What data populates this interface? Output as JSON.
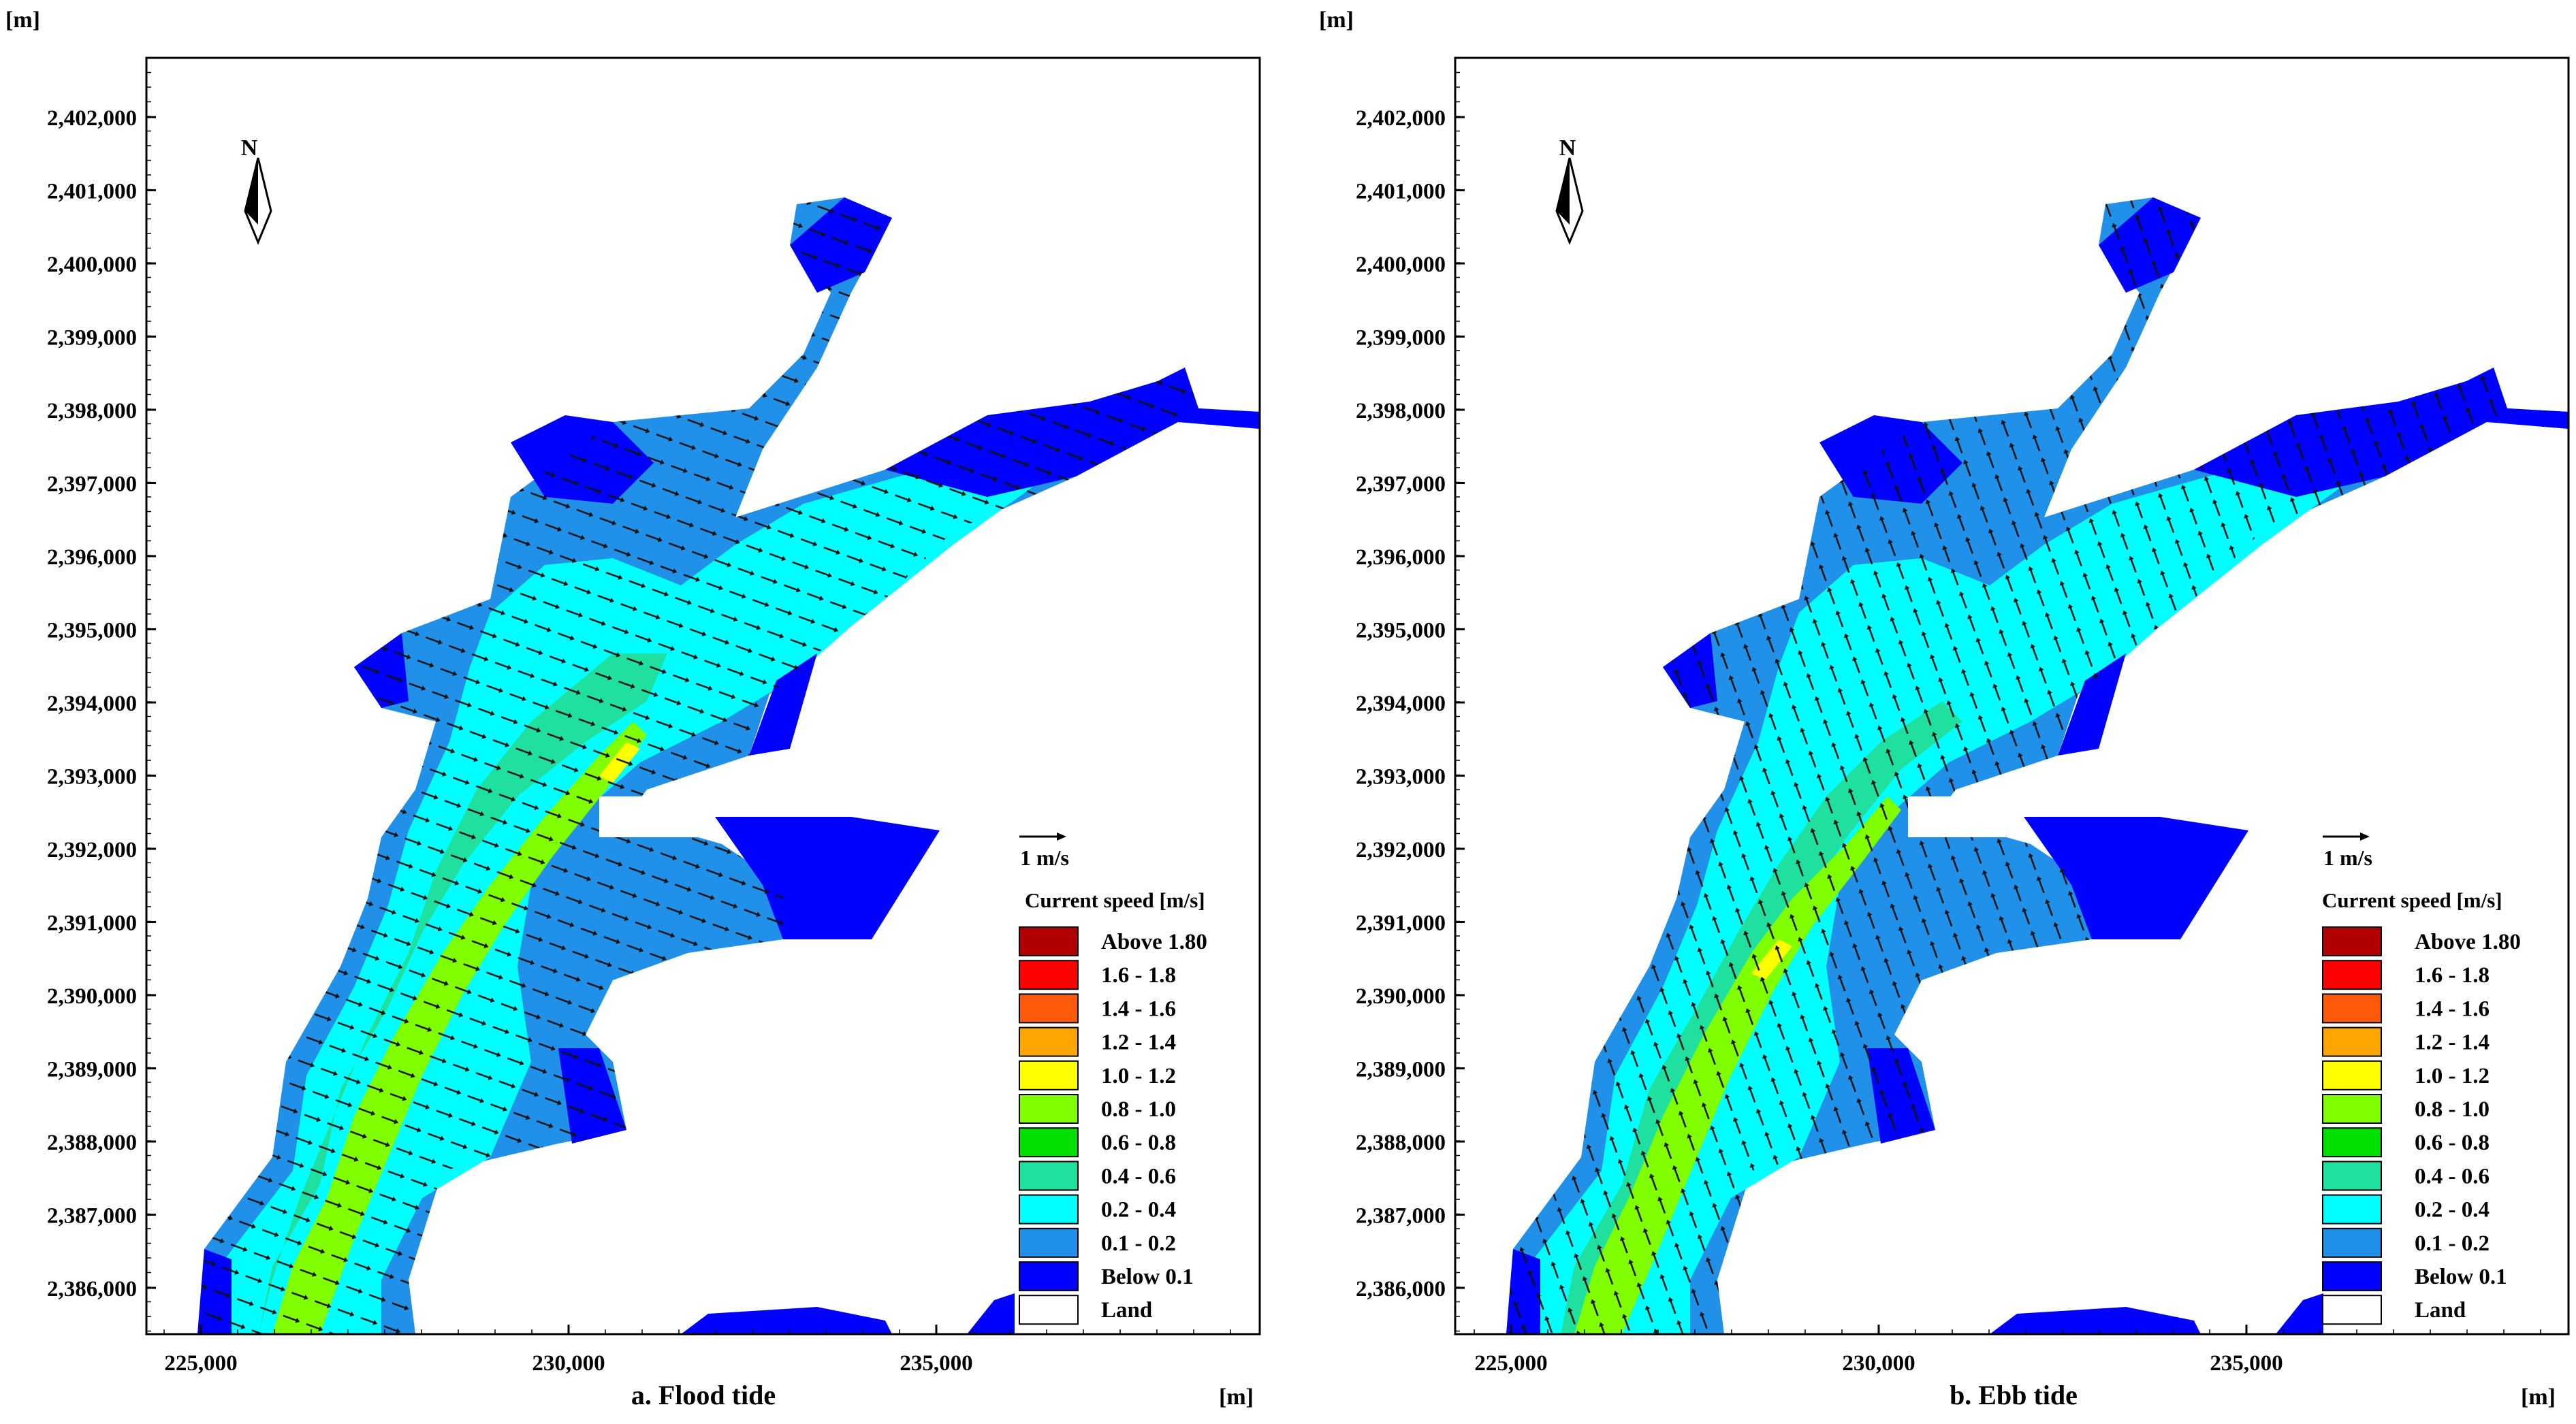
{
  "unit_label": "[m]",
  "y_ticks": [
    "2,402,000",
    "2,401,000",
    "2,400,000",
    "2,399,000",
    "2,398,000",
    "2,397,000",
    "2,396,000",
    "2,395,000",
    "2,394,000",
    "2,393,000",
    "2,392,000",
    "2,391,000",
    "2,390,000",
    "2,389,000",
    "2,388,000",
    "2,387,000",
    "2,386,000"
  ],
  "x_ticks": [
    "225,000",
    "230,000",
    "235,000"
  ],
  "north_label": "N",
  "vector_scale_label": "1 m/s",
  "legend": {
    "title": "Current speed [m/s]",
    "items": [
      {
        "label": "Above 1.80",
        "color": "#b00000"
      },
      {
        "label": "1.6 - 1.8",
        "color": "#ff0000"
      },
      {
        "label": "1.4 - 1.6",
        "color": "#ff5a0a"
      },
      {
        "label": "1.2 - 1.4",
        "color": "#ffa500"
      },
      {
        "label": "1.0 - 1.2",
        "color": "#ffff00"
      },
      {
        "label": "0.8 - 1.0",
        "color": "#80ff00"
      },
      {
        "label": "0.6 - 0.8",
        "color": "#00e000"
      },
      {
        "label": "0.4 - 0.6",
        "color": "#20e0a0"
      },
      {
        "label": "0.2 - 0.4",
        "color": "#00ffff"
      },
      {
        "label": "0.1 - 0.2",
        "color": "#2090e8"
      },
      {
        "label": "Below 0.1",
        "color": "#0000ff"
      },
      {
        "label": "Land",
        "color": "#ffffff"
      }
    ]
  },
  "panels": [
    {
      "id": "flood",
      "caption": "a. Flood tide"
    },
    {
      "id": "ebb",
      "caption": "b. Ebb tide"
    }
  ]
}
